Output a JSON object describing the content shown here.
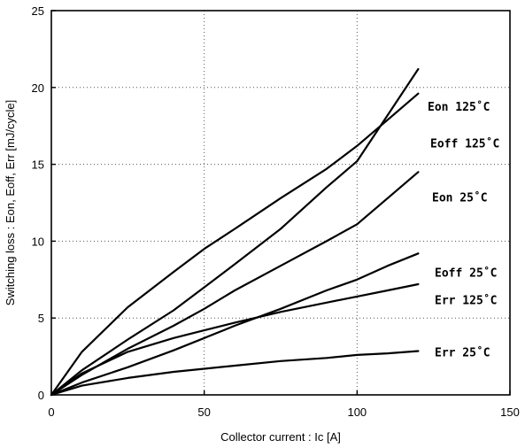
{
  "chart_data": {
    "type": "line",
    "xlabel": "Collector current  :  Ic [A]",
    "ylabel": "Switching loss  :  Eon, Eoff, Err  [mJ/cycle]",
    "xlim": [
      0,
      150
    ],
    "ylim": [
      0,
      25
    ],
    "xticks": [
      0,
      50,
      100,
      150
    ],
    "yticks": [
      0,
      5,
      10,
      15,
      20,
      25
    ],
    "grid": true,
    "series": [
      {
        "name": "Eon 125˚C",
        "x": [
          0,
          10,
          25,
          40,
          50,
          60,
          75,
          90,
          100,
          110,
          120
        ],
        "y": [
          0,
          1.6,
          3.6,
          5.5,
          7.0,
          8.5,
          10.8,
          13.5,
          15.2,
          18.2,
          21.2
        ]
      },
      {
        "name": "Eoff 125˚C",
        "x": [
          0,
          10,
          25,
          40,
          50,
          60,
          75,
          90,
          100,
          110,
          120
        ],
        "y": [
          0,
          2.8,
          5.7,
          8.0,
          9.5,
          10.8,
          12.8,
          14.7,
          16.2,
          17.9,
          19.6
        ]
      },
      {
        "name": "Eon 25˚C",
        "x": [
          0,
          10,
          25,
          40,
          50,
          60,
          75,
          90,
          100,
          110,
          120
        ],
        "y": [
          0,
          1.3,
          3.0,
          4.5,
          5.6,
          6.8,
          8.4,
          10.0,
          11.1,
          12.8,
          14.5
        ]
      },
      {
        "name": "Eoff 25˚C",
        "x": [
          0,
          10,
          25,
          40,
          50,
          60,
          75,
          90,
          100,
          110,
          120
        ],
        "y": [
          0,
          0.8,
          1.8,
          2.9,
          3.7,
          4.5,
          5.6,
          6.8,
          7.5,
          8.4,
          9.2
        ]
      },
      {
        "name": "Err 125˚C",
        "x": [
          0,
          10,
          25,
          40,
          50,
          60,
          75,
          90,
          100,
          110,
          120
        ],
        "y": [
          0,
          1.4,
          2.8,
          3.7,
          4.2,
          4.7,
          5.4,
          6.0,
          6.4,
          6.8,
          7.2
        ]
      },
      {
        "name": "Err 25˚C",
        "x": [
          0,
          10,
          25,
          40,
          50,
          60,
          75,
          90,
          100,
          110,
          120
        ],
        "y": [
          0,
          0.6,
          1.1,
          1.5,
          1.7,
          1.9,
          2.2,
          2.4,
          2.6,
          2.7,
          2.85
        ]
      }
    ]
  }
}
